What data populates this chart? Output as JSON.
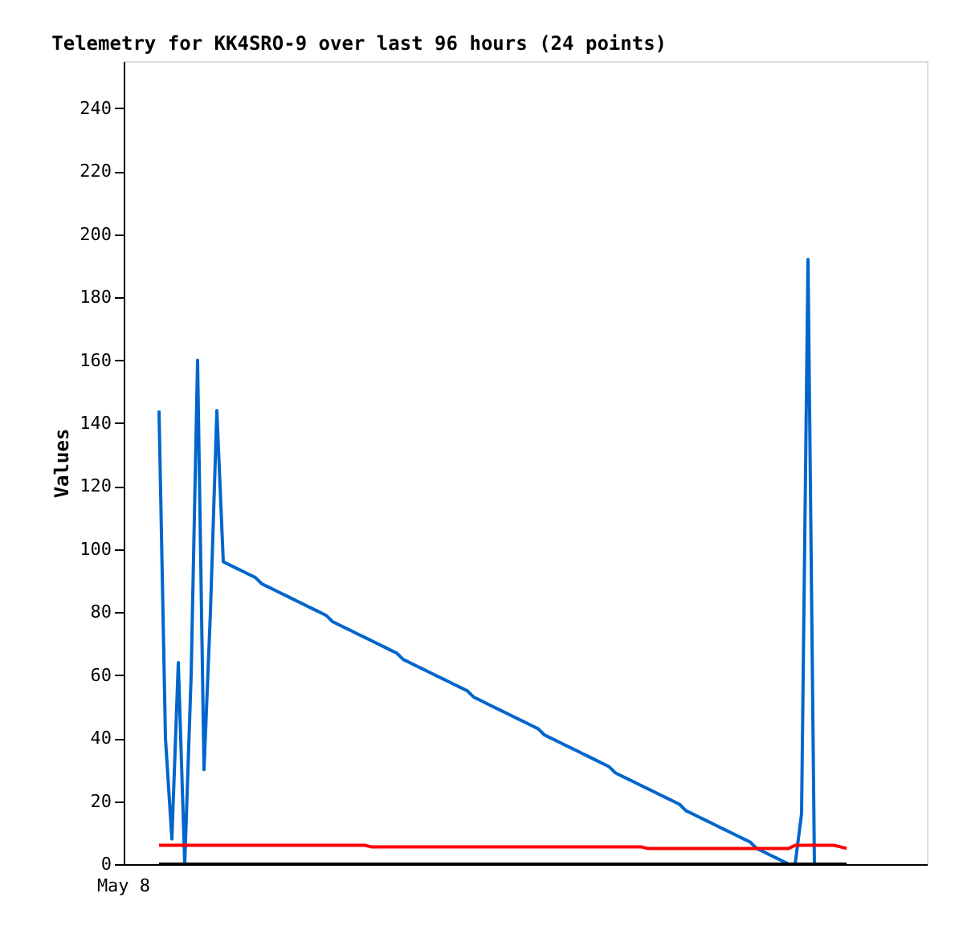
{
  "chart_data": {
    "type": "line",
    "title": "Telemetry for KK4SRO-9 over last 96 hours (24 points)",
    "ylabel": "Values",
    "annotations": [
      "May 8"
    ],
    "categories": [
      null,
      null,
      null,
      null,
      null,
      null,
      null,
      null,
      null,
      null,
      null,
      null,
      null,
      null,
      null,
      null,
      null,
      null,
      null,
      null,
      null,
      null,
      null,
      null,
      null,
      null,
      null,
      null,
      null,
      null,
      null,
      null,
      null,
      null,
      null,
      null,
      null,
      null,
      null,
      null,
      null,
      null,
      null,
      null,
      null,
      null,
      null,
      null,
      null,
      null,
      null,
      null,
      null,
      null,
      null,
      null,
      null,
      null,
      null,
      null,
      null,
      null,
      null,
      null,
      null,
      null,
      null,
      null,
      null,
      null,
      null,
      null,
      null,
      null,
      null,
      null,
      null,
      null,
      null,
      null,
      null,
      null,
      null,
      null,
      null,
      null,
      null,
      null,
      null,
      null,
      null,
      null,
      null,
      null,
      null,
      null,
      null,
      null,
      null,
      null,
      null,
      null,
      null,
      null,
      null,
      null,
      null,
      null,
      null,
      null,
      null,
      null,
      null,
      null,
      null,
      null,
      null,
      null,
      null,
      null,
      null,
      null,
      null,
      null,
      null
    ],
    "ylim": [
      0,
      255
    ],
    "yticks": [
      0,
      20,
      40,
      60,
      80,
      100,
      120,
      140,
      160,
      180,
      200,
      220,
      240
    ],
    "grid": false,
    "legend": false,
    "marker": "none",
    "line_style": "solid",
    "series": [
      {
        "color": "#0066cc",
        "values": [
          null,
          null,
          null,
          null,
          null,
          144,
          40,
          8,
          64,
          0,
          60,
          160,
          30,
          80,
          144,
          96,
          95,
          94,
          93,
          92,
          91,
          89,
          88,
          87,
          86,
          85,
          84,
          83,
          82,
          81,
          80,
          79,
          77,
          76,
          75,
          74,
          73,
          72,
          71,
          70,
          69,
          68,
          67,
          65,
          64,
          63,
          62,
          61,
          60,
          59,
          58,
          57,
          56,
          55,
          53,
          52,
          51,
          50,
          49,
          48,
          47,
          46,
          45,
          44,
          43,
          41,
          40,
          39,
          38,
          37,
          36,
          35,
          34,
          33,
          32,
          31,
          29,
          28,
          27,
          26,
          25,
          24,
          23,
          22,
          21,
          20,
          19,
          17,
          16,
          15,
          14,
          13,
          12,
          11,
          10,
          9,
          8,
          7,
          5,
          4,
          3,
          2,
          1,
          0,
          0,
          16,
          192,
          0,
          null,
          null,
          null,
          null,
          null,
          null,
          null,
          null,
          null,
          null,
          null,
          null,
          null,
          null,
          null,
          null,
          null
        ]
      },
      {
        "color": "#ff0000",
        "values": [
          null,
          null,
          null,
          null,
          null,
          6,
          6,
          6,
          6,
          6,
          6,
          6,
          6,
          6,
          6,
          6,
          6,
          6,
          6,
          6,
          6,
          6,
          6,
          6,
          6,
          6,
          6,
          6,
          6,
          6,
          6,
          6,
          6,
          6,
          6,
          6,
          6,
          6,
          5.5,
          5.5,
          5.5,
          5.5,
          5.5,
          5.5,
          5.5,
          5.5,
          5.5,
          5.5,
          5.5,
          5.5,
          5.5,
          5.5,
          5.5,
          5.5,
          5.5,
          5.5,
          5.5,
          5.5,
          5.5,
          5.5,
          5.5,
          5.5,
          5.5,
          5.5,
          5.5,
          5.5,
          5.5,
          5.5,
          5.5,
          5.5,
          5.5,
          5.5,
          5.5,
          5.5,
          5.5,
          5.5,
          5.5,
          5.5,
          5.5,
          5.5,
          5.5,
          5,
          5,
          5,
          5,
          5,
          5,
          5,
          5,
          5,
          5,
          5,
          5,
          5,
          5,
          5,
          5,
          5,
          5,
          5,
          5,
          5,
          5,
          5,
          6,
          6,
          6,
          6,
          6,
          6,
          6,
          5.5,
          5,
          null,
          null,
          null,
          null,
          null,
          null,
          null,
          null,
          null,
          null,
          null,
          null
        ]
      },
      {
        "color": "#000000",
        "values": [
          null,
          null,
          null,
          null,
          null,
          0,
          0,
          0,
          0,
          0,
          0,
          0,
          0,
          0,
          0,
          0,
          0,
          0,
          0,
          0,
          0,
          0,
          0,
          0,
          0,
          0,
          0,
          0,
          0,
          0,
          0,
          0,
          0,
          0,
          0,
          0,
          0,
          0,
          0,
          0,
          0,
          0,
          0,
          0,
          0,
          0,
          0,
          0,
          0,
          0,
          0,
          0,
          0,
          0,
          0,
          0,
          0,
          0,
          0,
          0,
          0,
          0,
          0,
          0,
          0,
          0,
          0,
          0,
          0,
          0,
          0,
          0,
          0,
          0,
          0,
          0,
          0,
          0,
          0,
          0,
          0,
          0,
          0,
          0,
          0,
          0,
          0,
          0,
          0,
          0,
          0,
          0,
          0,
          0,
          0,
          0,
          0,
          0,
          0,
          0,
          0,
          0,
          0,
          0,
          0,
          0,
          0,
          0,
          0,
          0,
          0,
          0,
          0,
          null,
          null,
          null,
          null,
          null,
          null,
          null,
          null,
          null,
          null,
          null,
          null
        ]
      }
    ]
  }
}
